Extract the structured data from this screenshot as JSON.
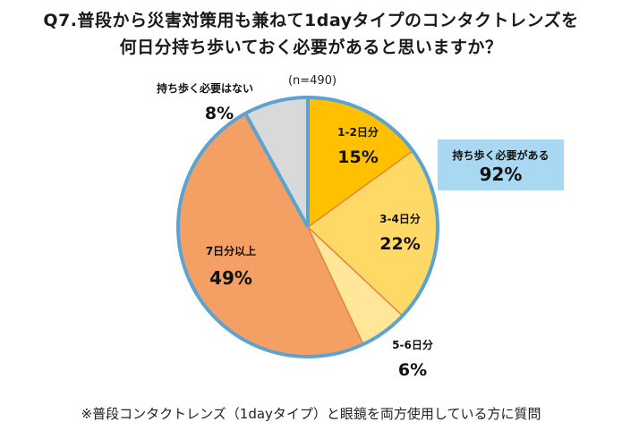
{
  "title_line1": "Q7.普段から災害対策用も兼ねて1dayタイプのコンタクトレンズを",
  "title_line2": "何日分持ち歩いておく必要があると思いますか？",
  "note": "※普段コンタクトレンズ（1dayタイプ）と眼鏡を両方使用している方に質問",
  "callout": {
    "label": "持ち歩く必要がある",
    "value": "92%"
  },
  "chart_data": {
    "type": "pie",
    "sample_size_label": "(n=490)",
    "slices": [
      {
        "label": "1-2日分",
        "value": 15,
        "display": "15%",
        "color": "#ffc000"
      },
      {
        "label": "3-4日分",
        "value": 22,
        "display": "22%",
        "color": "#ffd966"
      },
      {
        "label": "5-6日分",
        "value": 6,
        "display": "6%",
        "color": "#ffe699"
      },
      {
        "label": "7日分以上",
        "value": 49,
        "display": "49%",
        "color": "#f4a065"
      },
      {
        "label": "持ち歩く必要はない",
        "value": 8,
        "display": "8%",
        "color": "#d9d9d9"
      }
    ],
    "edge_color": "#e5853d",
    "border_color": "#5ba3d0"
  }
}
